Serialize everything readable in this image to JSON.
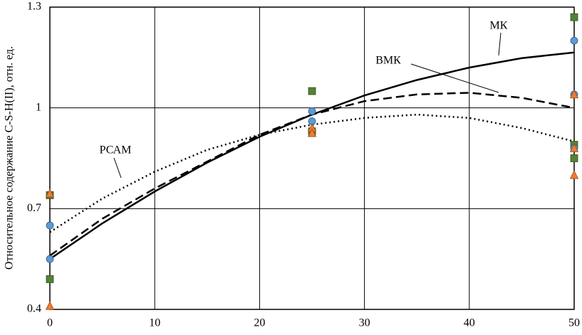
{
  "chart_data": {
    "type": "scatter",
    "ylabel": "Относительное содержание C-S-H(II), отн. ед.",
    "xlim": [
      0,
      50
    ],
    "xticks": [
      0,
      10,
      20,
      30,
      40,
      50
    ],
    "ylim": [
      0.4,
      1.3
    ],
    "yticks": [
      0.4,
      0.7,
      1,
      1.3
    ],
    "grid": true,
    "series": [
      {
        "marker": "square",
        "color": "#548235",
        "x": [
          0,
          0,
          25,
          25,
          50,
          50,
          50
        ],
        "values": [
          0.74,
          0.49,
          1.05,
          0.93,
          1.27,
          0.89,
          0.85
        ]
      },
      {
        "marker": "circle",
        "color": "#5b9bd5",
        "x": [
          0,
          0,
          25,
          25,
          50,
          50,
          50
        ],
        "values": [
          0.65,
          0.55,
          0.99,
          0.96,
          1.2,
          1.04,
          0.88
        ]
      },
      {
        "marker": "triangle",
        "color": "#ed7d31",
        "x": [
          0,
          0,
          25,
          25,
          50,
          50,
          50
        ],
        "values": [
          0.745,
          0.41,
          0.94,
          0.925,
          1.04,
          0.88,
          0.8
        ]
      }
    ],
    "trendlines": [
      {
        "name": "МК",
        "dash": "solid",
        "x": [
          0,
          5,
          10,
          15,
          20,
          25,
          30,
          35,
          40,
          45,
          50
        ],
        "values": [
          0.55,
          0.656,
          0.751,
          0.837,
          0.914,
          0.98,
          1.037,
          1.083,
          1.12,
          1.148,
          1.165
        ]
      },
      {
        "name": "ВМК",
        "dash": "dashed",
        "x": [
          0,
          5,
          10,
          15,
          20,
          25,
          30,
          35,
          40,
          45,
          50
        ],
        "values": [
          0.56,
          0.67,
          0.76,
          0.84,
          0.92,
          0.98,
          1.02,
          1.04,
          1.045,
          1.03,
          1.0
        ]
      },
      {
        "name": "РСАМ",
        "dash": "dotted",
        "x": [
          0,
          5,
          10,
          15,
          20,
          25,
          30,
          35,
          40,
          45,
          50
        ],
        "values": [
          0.63,
          0.73,
          0.81,
          0.875,
          0.92,
          0.95,
          0.97,
          0.98,
          0.97,
          0.94,
          0.9
        ]
      }
    ]
  }
}
